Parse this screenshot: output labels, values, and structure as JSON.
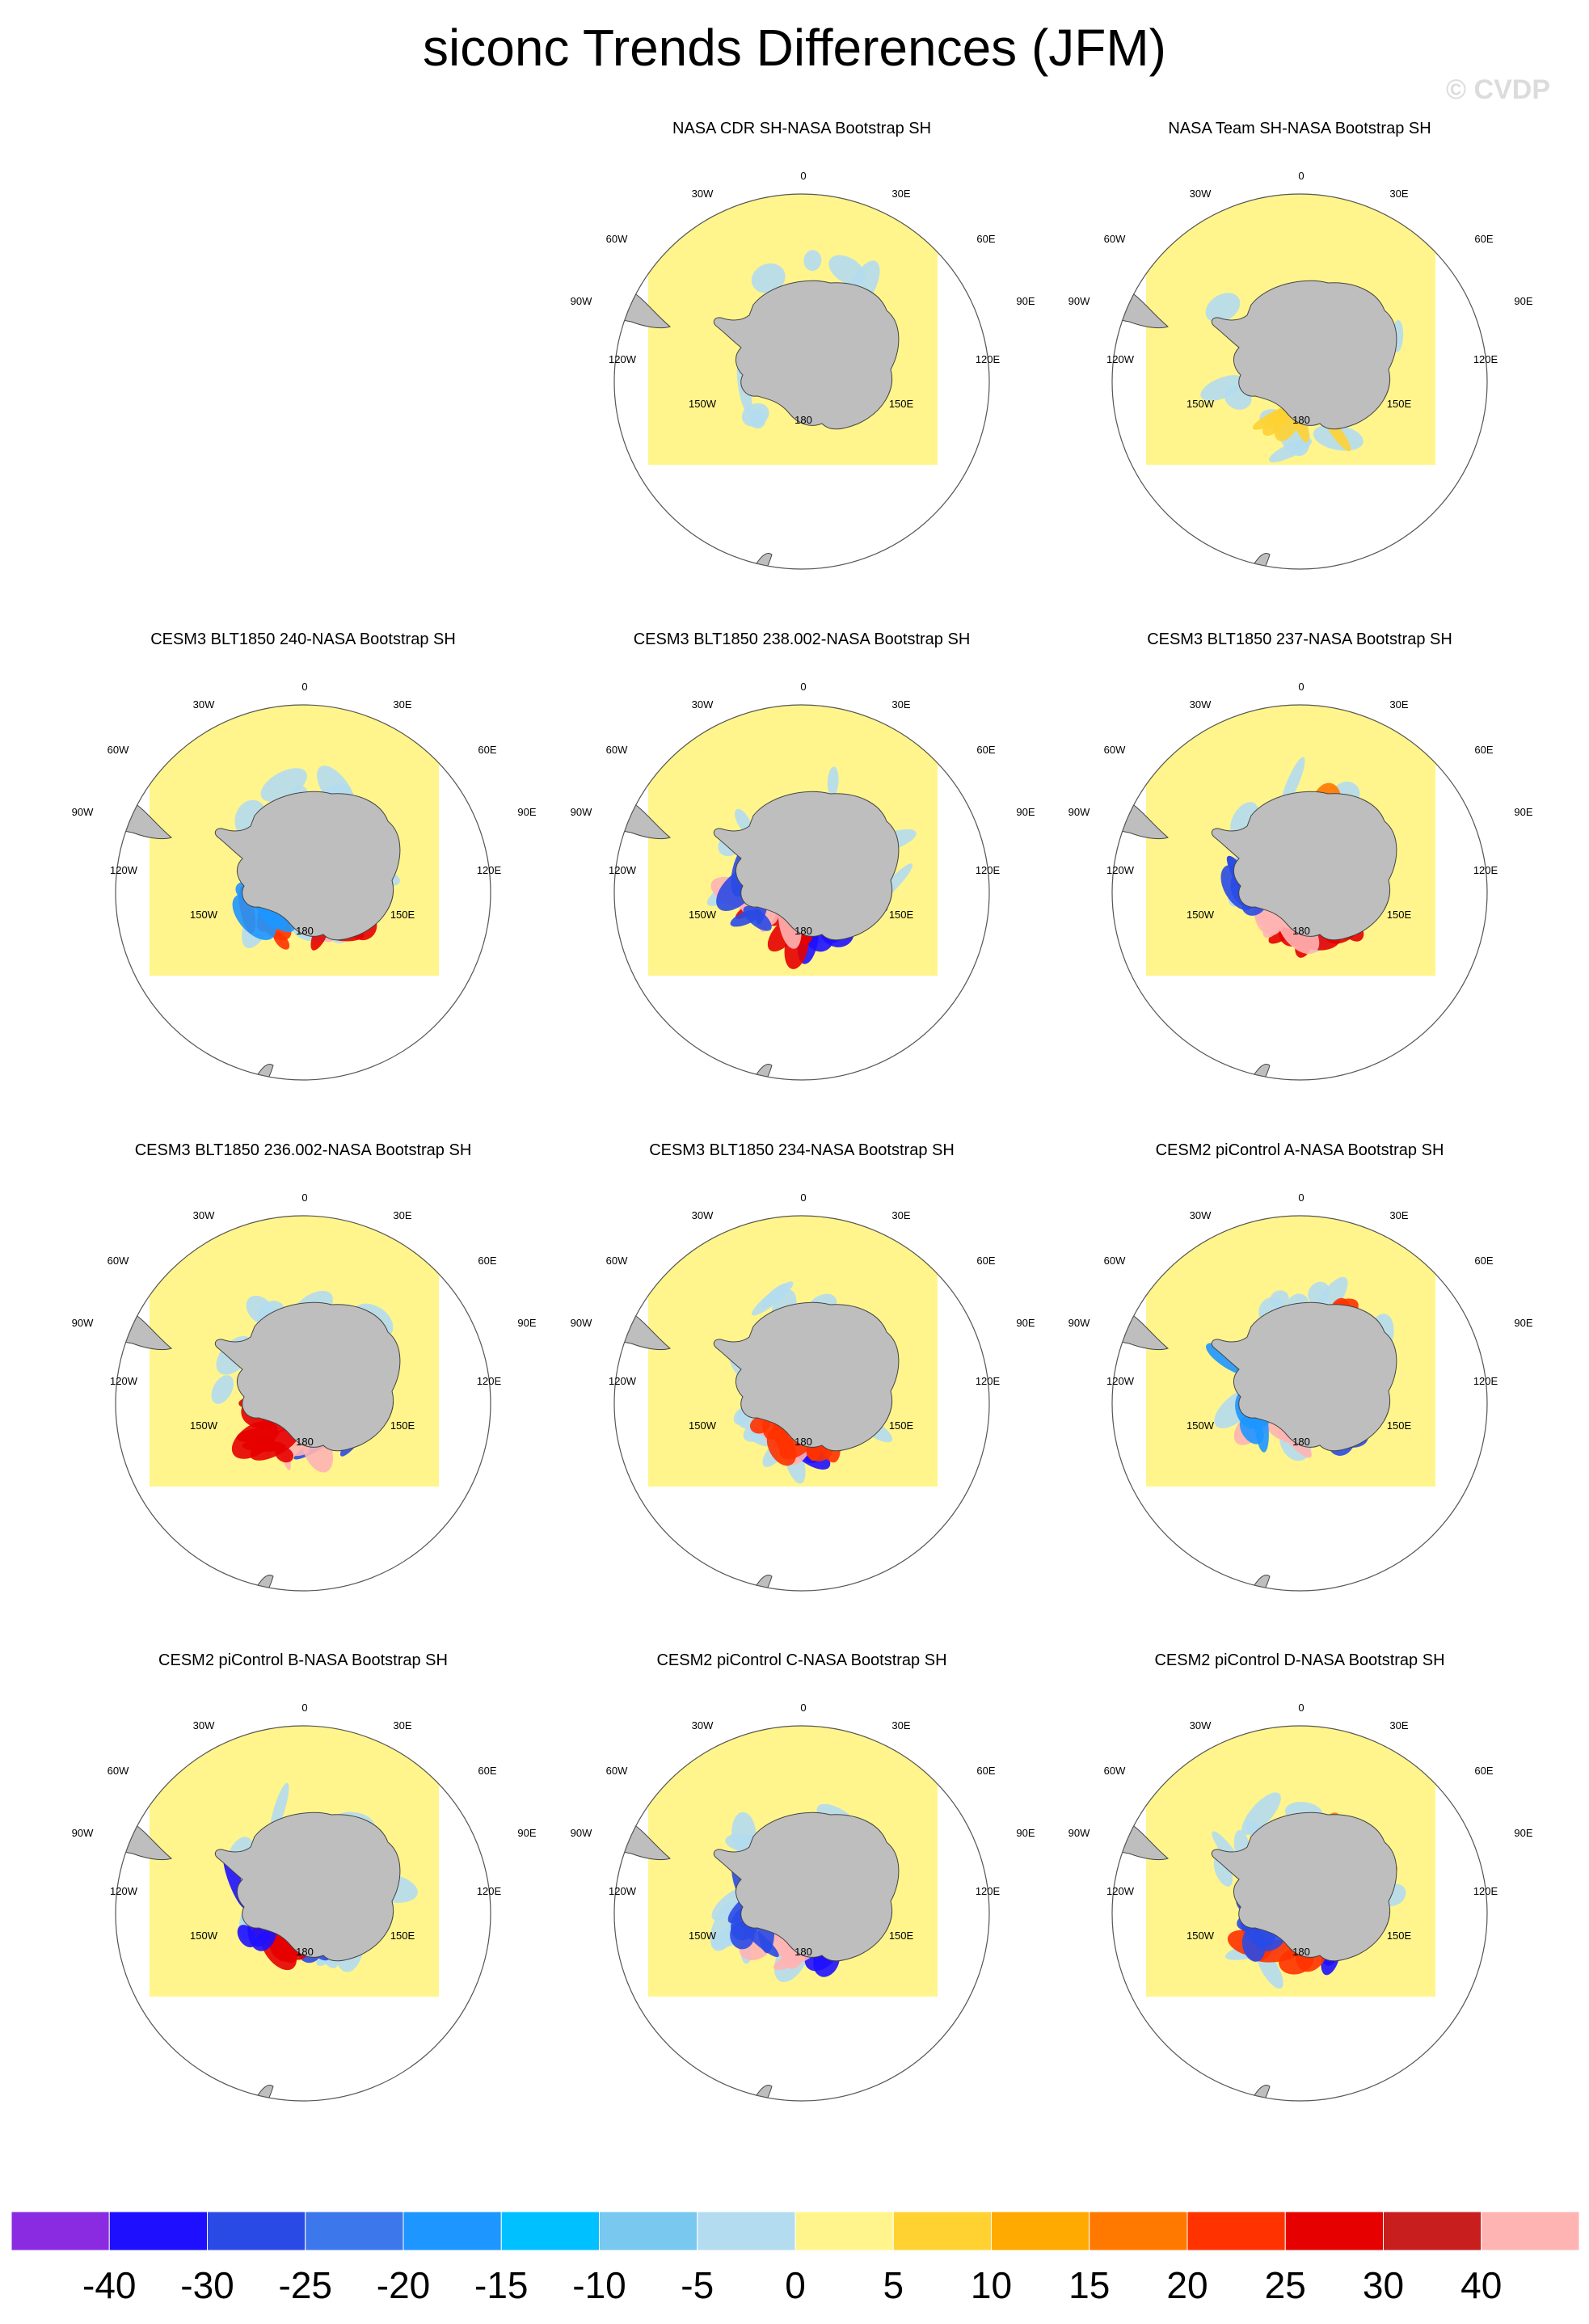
{
  "title": "siconc Trends Differences (JFM)",
  "watermark": "© CVDP",
  "lon_labels": {
    "n": "0",
    "nne": "30E",
    "ene": "60E",
    "e": "90E",
    "ese": "120E",
    "sse": "150E",
    "s": "180",
    "ssw": "150W",
    "wsw": "120W",
    "w": "90W",
    "wnw": "60W",
    "nnw": "30W"
  },
  "panels": [
    {
      "title": "",
      "variant": "empty"
    },
    {
      "title": "NASA CDR SH-NASA Bootstrap SH",
      "variant": "obs1"
    },
    {
      "title": "NASA Team SH-NASA Bootstrap SH",
      "variant": "obs2"
    },
    {
      "title": "CESM3 BLT1850 240-NASA Bootstrap SH",
      "variant": "m240"
    },
    {
      "title": "CESM3 BLT1850 238.002-NASA Bootstrap SH",
      "variant": "m238"
    },
    {
      "title": "CESM3 BLT1850 237-NASA Bootstrap SH",
      "variant": "m237"
    },
    {
      "title": "CESM3 BLT1850 236.002-NASA Bootstrap SH",
      "variant": "m236"
    },
    {
      "title": "CESM3 BLT1850 234-NASA Bootstrap SH",
      "variant": "m234"
    },
    {
      "title": "CESM2 piControl A-NASA Bootstrap SH",
      "variant": "pA"
    },
    {
      "title": "CESM2 piControl B-NASA Bootstrap SH",
      "variant": "pB"
    },
    {
      "title": "CESM2 piControl C-NASA Bootstrap SH",
      "variant": "pC"
    },
    {
      "title": "CESM2 piControl D-NASA Bootstrap SH",
      "variant": "pD"
    }
  ],
  "colorbar": {
    "colors": [
      "#8a2be2",
      "#1e0fff",
      "#2a4ae6",
      "#3c78eb",
      "#1e96ff",
      "#00c0ff",
      "#78c8f0",
      "#b4dcf0",
      "#fff58c",
      "#ffd232",
      "#ffaa00",
      "#ff7800",
      "#ff3200",
      "#e60000",
      "#c81e1e",
      "#ffb4b4"
    ],
    "labels": [
      "-40",
      "-30",
      "-25",
      "-20",
      "-15",
      "-10",
      "-5",
      "0",
      "5",
      "10",
      "15",
      "20",
      "25",
      "30",
      "40"
    ]
  }
}
